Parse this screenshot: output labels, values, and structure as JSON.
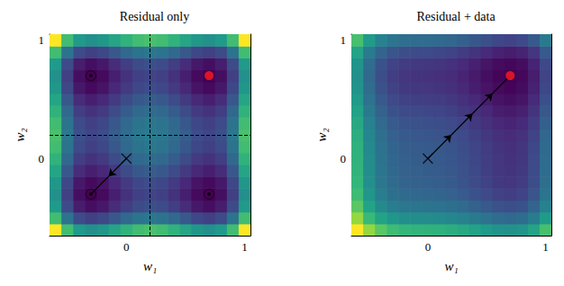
{
  "chart_data": [
    {
      "type": "contour",
      "title": "Residual only",
      "xlabel": "w₁",
      "ylabel": "w₂",
      "xlim": [
        -0.65,
        1.05
      ],
      "ylim": [
        -0.65,
        1.05
      ],
      "xticks": [
        0,
        1
      ],
      "yticks": [
        0,
        1
      ],
      "grid": false,
      "x": [
        -0.6,
        -0.5,
        -0.4,
        -0.3,
        -0.2,
        -0.1,
        0,
        0.1,
        0.2,
        0.3,
        0.4,
        0.5,
        0.6,
        0.7,
        0.8,
        0.9,
        1.0
      ],
      "y": [
        -0.6,
        -0.5,
        -0.4,
        -0.3,
        -0.2,
        -0.1,
        0,
        0.1,
        0.2,
        0.3,
        0.4,
        0.5,
        0.6,
        0.7,
        0.8,
        0.9,
        1.0
      ],
      "cells": [
        [
          30.4,
          21.0,
          16.4,
          15.2,
          16.0,
          17.8,
          19.6,
          21.0,
          21.5,
          21.0,
          19.6,
          17.8,
          16.0,
          15.2,
          16.4,
          21.0,
          30.4
        ],
        [
          21.0,
          11.6,
          7.0,
          5.8,
          6.6,
          8.4,
          10.2,
          11.6,
          12.1,
          11.6,
          10.2,
          8.4,
          6.6,
          5.8,
          7.0,
          11.6,
          21.0
        ],
        [
          16.4,
          7.0,
          2.4,
          1.2,
          2.0,
          3.8,
          5.6,
          7.0,
          7.5,
          7.0,
          5.6,
          3.8,
          2.0,
          1.2,
          2.4,
          7.0,
          16.4
        ],
        [
          15.2,
          5.8,
          1.2,
          0,
          0.8,
          2.6,
          4.4,
          5.8,
          6.3,
          5.8,
          4.4,
          2.6,
          0.8,
          0,
          1.2,
          5.8,
          15.2
        ],
        [
          16.0,
          6.6,
          2.0,
          0.8,
          1.6,
          3.4,
          5.2,
          6.6,
          7.1,
          6.6,
          5.2,
          3.4,
          1.6,
          0.8,
          2.0,
          6.6,
          16.0
        ],
        [
          17.8,
          8.4,
          3.8,
          2.6,
          3.4,
          5.2,
          7.0,
          8.4,
          8.9,
          8.4,
          7.0,
          5.2,
          3.4,
          2.6,
          3.8,
          8.4,
          17.8
        ],
        [
          19.6,
          10.2,
          5.6,
          4.4,
          5.2,
          7.0,
          8.8,
          10.2,
          10.7,
          10.2,
          8.8,
          7.0,
          5.2,
          4.4,
          5.6,
          10.2,
          19.6
        ],
        [
          21.0,
          11.6,
          7.0,
          5.8,
          6.6,
          8.4,
          10.2,
          11.6,
          12.1,
          11.6,
          10.2,
          8.4,
          6.6,
          5.8,
          7.0,
          11.6,
          21.0
        ],
        [
          21.5,
          12.1,
          7.5,
          6.3,
          7.1,
          8.9,
          10.7,
          12.1,
          12.6,
          12.1,
          10.7,
          8.9,
          7.1,
          6.3,
          7.5,
          12.1,
          21.5
        ],
        [
          21.0,
          11.6,
          7.0,
          5.8,
          6.6,
          8.4,
          10.2,
          11.6,
          12.1,
          11.6,
          10.2,
          8.4,
          6.6,
          5.8,
          7.0,
          11.6,
          21.0
        ],
        [
          19.6,
          10.2,
          5.6,
          4.4,
          5.2,
          7.0,
          8.8,
          10.2,
          10.7,
          10.2,
          8.8,
          7.0,
          5.2,
          4.4,
          5.6,
          10.2,
          19.6
        ],
        [
          17.8,
          8.4,
          3.8,
          2.6,
          3.4,
          5.2,
          7.0,
          8.4,
          8.9,
          8.4,
          7.0,
          5.2,
          3.4,
          2.6,
          3.8,
          8.4,
          17.8
        ],
        [
          16.0,
          6.6,
          2.0,
          0.8,
          1.6,
          3.4,
          5.2,
          6.6,
          7.1,
          6.6,
          5.2,
          3.4,
          1.6,
          0.8,
          2.0,
          6.6,
          16.0
        ],
        [
          15.2,
          5.8,
          1.2,
          0,
          0.8,
          2.6,
          4.4,
          5.8,
          6.3,
          5.8,
          4.4,
          2.6,
          0.8,
          0,
          1.2,
          5.8,
          15.2
        ],
        [
          16.4,
          7.0,
          2.4,
          1.2,
          2.0,
          3.8,
          5.6,
          7.0,
          7.5,
          7.0,
          5.6,
          3.8,
          2.0,
          1.2,
          2.4,
          7.0,
          16.4
        ],
        [
          21.0,
          11.6,
          7.0,
          5.8,
          6.6,
          8.4,
          10.2,
          11.6,
          12.1,
          11.6,
          10.2,
          8.4,
          6.6,
          5.8,
          7.0,
          11.6,
          21.0
        ],
        [
          30.4,
          21.0,
          16.4,
          15.2,
          16.0,
          17.8,
          19.6,
          21.0,
          21.5,
          21.0,
          19.6,
          17.8,
          16.0,
          15.2,
          16.4,
          21.0,
          30.4
        ]
      ],
      "guides": {
        "x": 0.2,
        "y": 0.2
      },
      "minima": [
        [
          -0.3,
          0.7
        ],
        [
          -0.3,
          -0.3
        ],
        [
          0.7,
          -0.3
        ]
      ],
      "optimum": [
        0.7,
        0.7
      ],
      "start": [
        0,
        0
      ],
      "path": [
        [
          0,
          0
        ],
        [
          -0.15,
          -0.15
        ],
        [
          -0.3,
          -0.3
        ]
      ]
    },
    {
      "type": "contour",
      "title": "Residual + data",
      "xlabel": "w₁",
      "ylabel": "w₂",
      "xlim": [
        -0.65,
        1.05
      ],
      "ylim": [
        -0.65,
        1.05
      ],
      "xticks": [
        0,
        1
      ],
      "yticks": [
        0,
        1
      ],
      "grid": false,
      "x": [
        -0.6,
        -0.5,
        -0.4,
        -0.3,
        -0.2,
        -0.1,
        0,
        0.1,
        0.2,
        0.3,
        0.4,
        0.5,
        0.6,
        0.7,
        0.8,
        0.9,
        1.0
      ],
      "y": [
        -0.6,
        -0.5,
        -0.4,
        -0.3,
        -0.2,
        -0.1,
        0,
        0.1,
        0.2,
        0.3,
        0.4,
        0.5,
        0.6,
        0.7,
        0.8,
        0.9,
        1.0
      ],
      "cells": [
        [
          81.2,
          68.0,
          60.0,
          55.6,
          53.6,
          52.8,
          52.4,
          51.8,
          50.7,
          48.8,
          46.4,
          43.8,
          41.6,
          40.6,
          42.0,
          47.0,
          57.2
        ],
        [
          68.0,
          54.8,
          46.8,
          42.4,
          40.4,
          39.6,
          39.2,
          38.6,
          37.5,
          35.6,
          33.2,
          30.6,
          28.4,
          27.4,
          28.8,
          33.8,
          44.0
        ],
        [
          60.0,
          46.8,
          38.8,
          34.4,
          32.4,
          31.6,
          31.2,
          30.6,
          29.5,
          27.6,
          25.2,
          22.6,
          20.4,
          19.4,
          20.8,
          25.8,
          36.0
        ],
        [
          55.6,
          42.4,
          34.4,
          30.0,
          28.0,
          27.2,
          26.8,
          26.2,
          25.1,
          23.2,
          20.8,
          18.2,
          16.0,
          15.0,
          16.4,
          21.4,
          31.6
        ],
        [
          53.6,
          40.4,
          32.4,
          28.0,
          26.0,
          25.2,
          24.8,
          24.2,
          23.1,
          21.2,
          18.8,
          16.2,
          14.0,
          13.0,
          14.4,
          19.4,
          29.6
        ],
        [
          52.8,
          39.6,
          31.6,
          27.2,
          25.2,
          24.4,
          24.0,
          23.4,
          22.3,
          20.4,
          18.0,
          15.4,
          13.2,
          12.2,
          13.6,
          18.6,
          28.8
        ],
        [
          52.4,
          39.2,
          31.2,
          26.8,
          24.8,
          24.0,
          23.6,
          23.0,
          21.9,
          20.0,
          17.6,
          15.0,
          12.8,
          11.8,
          13.2,
          18.2,
          28.4
        ],
        [
          51.8,
          38.6,
          30.6,
          26.2,
          24.2,
          23.4,
          23.0,
          22.4,
          21.3,
          19.4,
          17.0,
          14.4,
          12.2,
          11.2,
          12.6,
          17.6,
          27.8
        ],
        [
          50.7,
          37.5,
          29.5,
          25.1,
          23.1,
          22.3,
          21.9,
          21.3,
          20.2,
          18.3,
          15.9,
          13.3,
          11.1,
          10.1,
          11.5,
          16.5,
          26.7
        ],
        [
          48.8,
          35.6,
          27.6,
          23.2,
          21.2,
          20.4,
          20.0,
          19.4,
          18.3,
          16.4,
          14.0,
          11.4,
          9.2,
          8.2,
          9.6,
          14.6,
          24.8
        ],
        [
          46.4,
          33.2,
          25.2,
          20.8,
          18.8,
          18.0,
          17.6,
          17.0,
          15.9,
          14.0,
          11.6,
          9.0,
          6.8,
          5.8,
          7.2,
          12.2,
          22.4
        ],
        [
          43.8,
          30.6,
          22.6,
          18.2,
          16.2,
          15.4,
          15.0,
          14.4,
          13.3,
          11.4,
          9.0,
          6.4,
          4.2,
          3.2,
          4.6,
          9.6,
          19.8
        ],
        [
          41.6,
          28.4,
          20.4,
          16.0,
          14.0,
          13.2,
          12.8,
          12.2,
          11.1,
          9.2,
          6.8,
          4.2,
          2.0,
          1.0,
          2.4,
          7.4,
          17.6
        ],
        [
          40.6,
          27.4,
          19.4,
          15.0,
          13.0,
          12.2,
          11.8,
          11.2,
          10.1,
          8.2,
          5.8,
          3.2,
          1.0,
          0,
          1.4,
          6.4,
          16.6
        ],
        [
          42.0,
          28.8,
          20.8,
          16.4,
          14.4,
          13.6,
          13.2,
          12.6,
          11.5,
          9.6,
          7.2,
          4.6,
          2.4,
          1.4,
          2.8,
          7.8,
          18.0
        ],
        [
          47.0,
          33.8,
          25.8,
          21.4,
          19.4,
          18.6,
          18.2,
          17.6,
          16.5,
          14.6,
          12.2,
          9.6,
          7.4,
          6.4,
          7.8,
          12.8,
          23.0
        ],
        [
          57.2,
          44.0,
          36.0,
          31.6,
          29.6,
          28.8,
          28.4,
          27.8,
          26.7,
          24.8,
          22.4,
          19.8,
          17.6,
          16.6,
          18.0,
          23.0,
          33.2
        ]
      ],
      "optimum": [
        0.7,
        0.7
      ],
      "start": [
        0,
        0
      ],
      "path": [
        [
          0,
          0
        ],
        [
          0.2,
          0.2
        ],
        [
          0.38,
          0.38
        ],
        [
          0.55,
          0.55
        ],
        [
          0.7,
          0.7
        ]
      ]
    }
  ]
}
